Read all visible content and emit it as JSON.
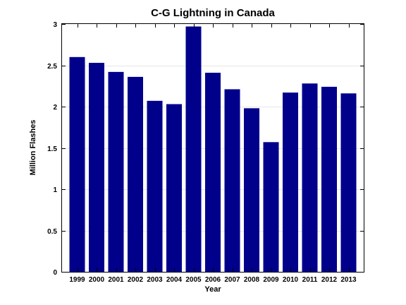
{
  "chart_data": {
    "type": "bar",
    "title": "C-G Lightning in Canada",
    "xlabel": "Year",
    "ylabel": "Million Flashes",
    "categories": [
      "1999",
      "2000",
      "2001",
      "2002",
      "2003",
      "2004",
      "2005",
      "2006",
      "2007",
      "2008",
      "2009",
      "2010",
      "2011",
      "2012",
      "2013"
    ],
    "values": [
      2.6,
      2.53,
      2.42,
      2.36,
      2.07,
      2.03,
      2.97,
      2.41,
      2.21,
      1.98,
      1.57,
      2.17,
      2.28,
      2.24,
      2.16
    ],
    "ylim": [
      0,
      3
    ],
    "yticks": [
      0,
      0.5,
      1,
      1.5,
      2,
      2.5,
      3
    ],
    "ytick_labels": [
      "0",
      "0.5",
      "1",
      "1.5",
      "2",
      "2.5",
      "3"
    ],
    "bar_color": "#00008B",
    "grid": "horizontal-light",
    "legend": "none"
  }
}
